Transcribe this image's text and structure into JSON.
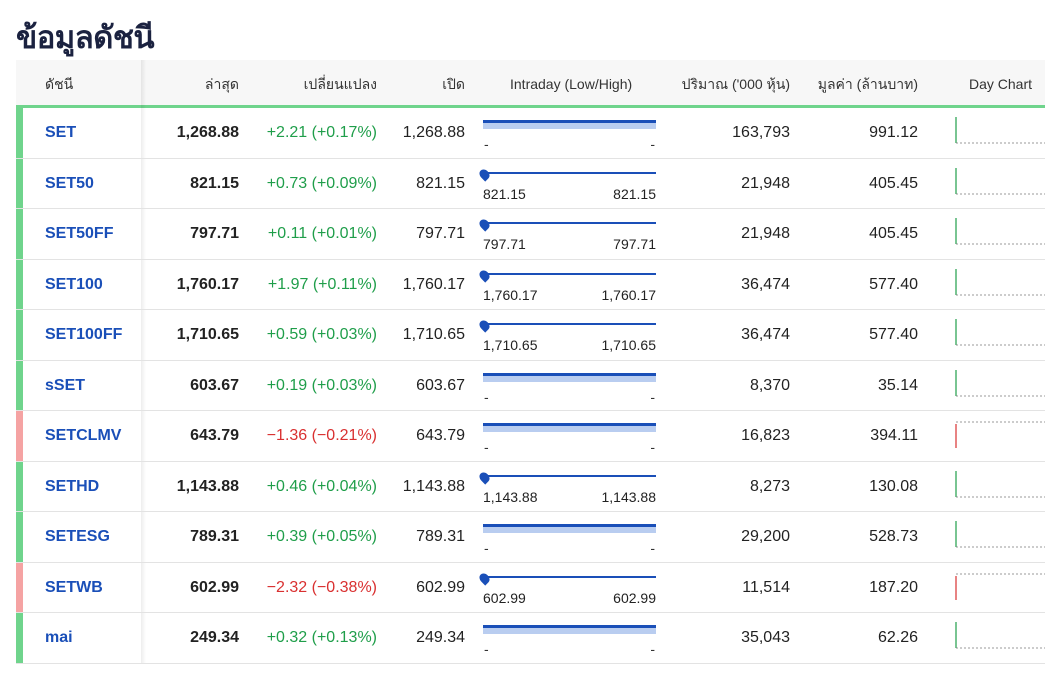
{
  "page_title": "ข้อมูลดัชนี",
  "columns": {
    "index": "ดัชนี",
    "last": "ล่าสุด",
    "change": "เปลี่ยนแปลง",
    "open": "เปิด",
    "intraday": "Intraday (Low/High)",
    "volume": "ปริมาณ ('000 หุ้น)",
    "value": "มูลค่า (ล้านบาท)",
    "day_chart": "Day Chart"
  },
  "colors": {
    "up": "#1f9e4a",
    "down": "#d93030",
    "up_bar": "#6fd48c",
    "down_bar": "#f5a3a3",
    "link": "#1a4fb8"
  },
  "rows": [
    {
      "symbol": "SET",
      "last": "1,268.88",
      "change": "+2.21 (+0.17%)",
      "direction": "up",
      "open": "1,268.88",
      "intraday": {
        "type": "band",
        "low": "-",
        "high": "-"
      },
      "volume": "163,793",
      "value": "991.12"
    },
    {
      "symbol": "SET50",
      "last": "821.15",
      "change": "+0.73 (+0.09%)",
      "direction": "up",
      "open": "821.15",
      "intraday": {
        "type": "point",
        "low": "821.15",
        "high": "821.15"
      },
      "volume": "21,948",
      "value": "405.45"
    },
    {
      "symbol": "SET50FF",
      "last": "797.71",
      "change": "+0.11 (+0.01%)",
      "direction": "up",
      "open": "797.71",
      "intraday": {
        "type": "point",
        "low": "797.71",
        "high": "797.71"
      },
      "volume": "21,948",
      "value": "405.45"
    },
    {
      "symbol": "SET100",
      "last": "1,760.17",
      "change": "+1.97 (+0.11%)",
      "direction": "up",
      "open": "1,760.17",
      "intraday": {
        "type": "point",
        "low": "1,760.17",
        "high": "1,760.17"
      },
      "volume": "36,474",
      "value": "577.40"
    },
    {
      "symbol": "SET100FF",
      "last": "1,710.65",
      "change": "+0.59 (+0.03%)",
      "direction": "up",
      "open": "1,710.65",
      "intraday": {
        "type": "point",
        "low": "1,710.65",
        "high": "1,710.65"
      },
      "volume": "36,474",
      "value": "577.40"
    },
    {
      "symbol": "sSET",
      "last": "603.67",
      "change": "+0.19 (+0.03%)",
      "direction": "up",
      "open": "603.67",
      "intraday": {
        "type": "band",
        "low": "-",
        "high": "-"
      },
      "volume": "8,370",
      "value": "35.14"
    },
    {
      "symbol": "SETCLMV",
      "last": "643.79",
      "change": "−1.36 (−0.21%)",
      "direction": "down",
      "open": "643.79",
      "intraday": {
        "type": "band",
        "low": "-",
        "high": "-"
      },
      "volume": "16,823",
      "value": "394.11"
    },
    {
      "symbol": "SETHD",
      "last": "1,143.88",
      "change": "+0.46 (+0.04%)",
      "direction": "up",
      "open": "1,143.88",
      "intraday": {
        "type": "point",
        "low": "1,143.88",
        "high": "1,143.88"
      },
      "volume": "8,273",
      "value": "130.08"
    },
    {
      "symbol": "SETESG",
      "last": "789.31",
      "change": "+0.39 (+0.05%)",
      "direction": "up",
      "open": "789.31",
      "intraday": {
        "type": "band",
        "low": "-",
        "high": "-"
      },
      "volume": "29,200",
      "value": "528.73"
    },
    {
      "symbol": "SETWB",
      "last": "602.99",
      "change": "−2.32 (−0.38%)",
      "direction": "down",
      "open": "602.99",
      "intraday": {
        "type": "point",
        "low": "602.99",
        "high": "602.99"
      },
      "volume": "11,514",
      "value": "187.20"
    },
    {
      "symbol": "mai",
      "last": "249.34",
      "change": "+0.32 (+0.13%)",
      "direction": "up",
      "open": "249.34",
      "intraday": {
        "type": "band",
        "low": "-",
        "high": "-"
      },
      "volume": "35,043",
      "value": "62.26"
    }
  ]
}
